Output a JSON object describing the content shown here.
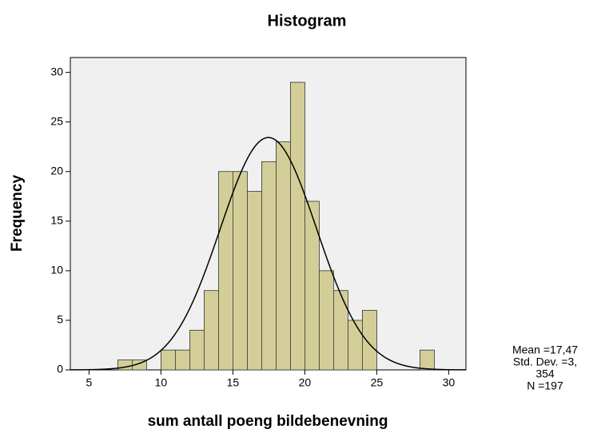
{
  "chart_data": {
    "type": "histogram",
    "title": "Histogram",
    "x_label": "sum antall poeng bildebenevning",
    "y_label": "Frequency",
    "bins": [
      7,
      8,
      9,
      10,
      11,
      12,
      13,
      14,
      15,
      16,
      17,
      18,
      19,
      20,
      21,
      22,
      23,
      24,
      25,
      26,
      27,
      28,
      29
    ],
    "counts": [
      1,
      1,
      0,
      2,
      2,
      4,
      8,
      20,
      20,
      18,
      21,
      23,
      29,
      17,
      10,
      8,
      5,
      6,
      0,
      0,
      0,
      2
    ],
    "color": "#d3ce97",
    "xlim": [
      3.7,
      31.2
    ],
    "xticks": [
      5,
      10,
      15,
      20,
      25,
      30
    ],
    "ylim": [
      0,
      31.5
    ],
    "yticks": [
      0,
      5,
      10,
      15,
      20,
      25,
      30
    ],
    "curve": {
      "mean": 17.47,
      "sd": 3.354,
      "n": 197
    },
    "stats": [
      "Mean =17,47",
      "Std. Dev. =3,",
      "354",
      "N =197"
    ]
  }
}
